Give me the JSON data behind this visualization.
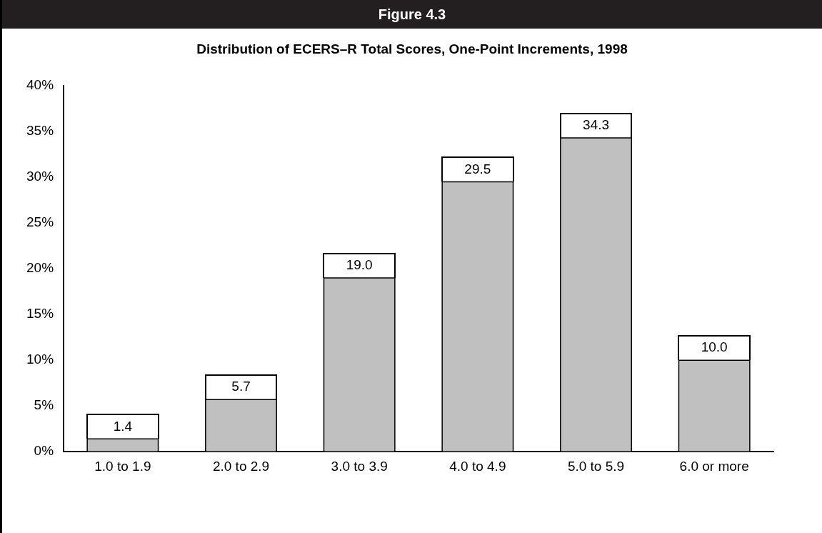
{
  "chart_data": {
    "type": "bar",
    "title": "Figure 4.3",
    "subtitle": "Distribution of ECERS–R Total Scores, One-Point Increments, 1998",
    "categories": [
      "1.0 to 1.9",
      "2.0 to 2.9",
      "3.0 to 3.9",
      "4.0 to 4.9",
      "5.0 to 5.9",
      "6.0 or more"
    ],
    "values": [
      1.4,
      5.7,
      19.0,
      29.5,
      34.3,
      10.0
    ],
    "value_labels": [
      "1.4",
      "5.7",
      "19.0",
      "29.5",
      "34.3",
      "10.0"
    ],
    "color": "#c0c0c0",
    "ylim": [
      0,
      40
    ],
    "yticks": [
      {
        "value": 0,
        "label": "0%"
      },
      {
        "value": 5,
        "label": "5%"
      },
      {
        "value": 10,
        "label": "10%"
      },
      {
        "value": 15,
        "label": "15%"
      },
      {
        "value": 20,
        "label": "20%"
      },
      {
        "value": 25,
        "label": "25%"
      },
      {
        "value": 30,
        "label": "30%"
      },
      {
        "value": 35,
        "label": "35%"
      },
      {
        "value": 40,
        "label": "40%"
      }
    ],
    "grid": false,
    "legend": false
  }
}
